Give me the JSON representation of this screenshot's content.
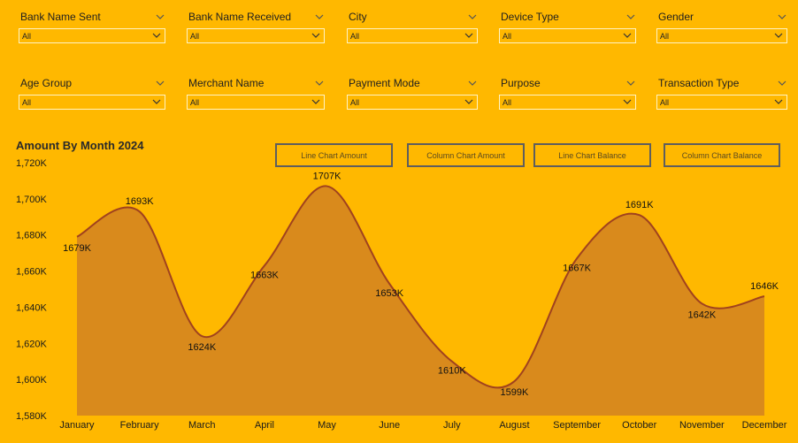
{
  "filters": [
    {
      "label": "Bank Name Sent",
      "value": "All"
    },
    {
      "label": "Bank Name Received",
      "value": "All"
    },
    {
      "label": "City",
      "value": "All"
    },
    {
      "label": "Device Type",
      "value": "All"
    },
    {
      "label": "Gender",
      "value": "All"
    },
    {
      "label": "Age Group",
      "value": "All"
    },
    {
      "label": "Merchant Name",
      "value": "All"
    },
    {
      "label": "Payment Mode",
      "value": "All"
    },
    {
      "label": "Purpose",
      "value": "All"
    },
    {
      "label": "Transaction Type",
      "value": "All"
    }
  ],
  "chart_title": "Amount By Month 2024",
  "buttons": [
    {
      "label": "Line Chart Amount"
    },
    {
      "label": "Column Chart Amount"
    },
    {
      "label": "Line Chart Balance"
    },
    {
      "label": "Column Chart Balance"
    }
  ],
  "colors": {
    "background": "#FFB800",
    "area_fill": "#D98A1C",
    "line": "#A0421E"
  },
  "chart_data": {
    "type": "area",
    "title": "Amount By Month 2024",
    "xlabel": "",
    "ylabel": "",
    "categories": [
      "January",
      "February",
      "March",
      "April",
      "May",
      "June",
      "July",
      "August",
      "September",
      "October",
      "November",
      "December"
    ],
    "values": [
      1679,
      1693,
      1624,
      1663,
      1707,
      1653,
      1610,
      1599,
      1667,
      1691,
      1642,
      1646
    ],
    "data_labels": [
      "1679K",
      "1693K",
      "1624K",
      "1663K",
      "1707K",
      "1653K",
      "1610K",
      "1599K",
      "1667K",
      "1691K",
      "1642K",
      "1646K"
    ],
    "yticks": [
      "1,580K",
      "1,600K",
      "1,620K",
      "1,640K",
      "1,660K",
      "1,680K",
      "1,700K",
      "1,720K"
    ],
    "ylim": [
      1580,
      1720
    ],
    "grid": false
  }
}
